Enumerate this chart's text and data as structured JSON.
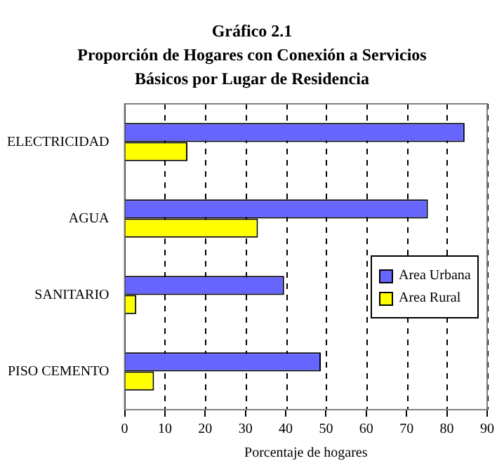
{
  "chart_data": {
    "type": "bar",
    "orientation": "horizontal",
    "title": "Gráfico 2.1",
    "subtitle": "Proporción de Hogares con Conexión a Servicios Básicos por Lugar de Residencia",
    "xlabel": "Porcentaje de hogares",
    "categories": [
      "ELECTRICIDAD",
      "AGUA",
      "SANITARIO",
      "PISO CEMENTO"
    ],
    "series": [
      {
        "name": "Area Urbana",
        "color": "#6666ff",
        "values": [
          84.4,
          75.3,
          39.6,
          48.7
        ]
      },
      {
        "name": "Area Rural",
        "color": "#ffff00",
        "values": [
          15.6,
          33.1,
          2.9,
          7.3
        ]
      }
    ],
    "xlim": [
      0,
      90
    ],
    "xticks": [
      0,
      10,
      20,
      30,
      40,
      50,
      60,
      70,
      80,
      90
    ],
    "grid": "x",
    "legend": "right"
  }
}
